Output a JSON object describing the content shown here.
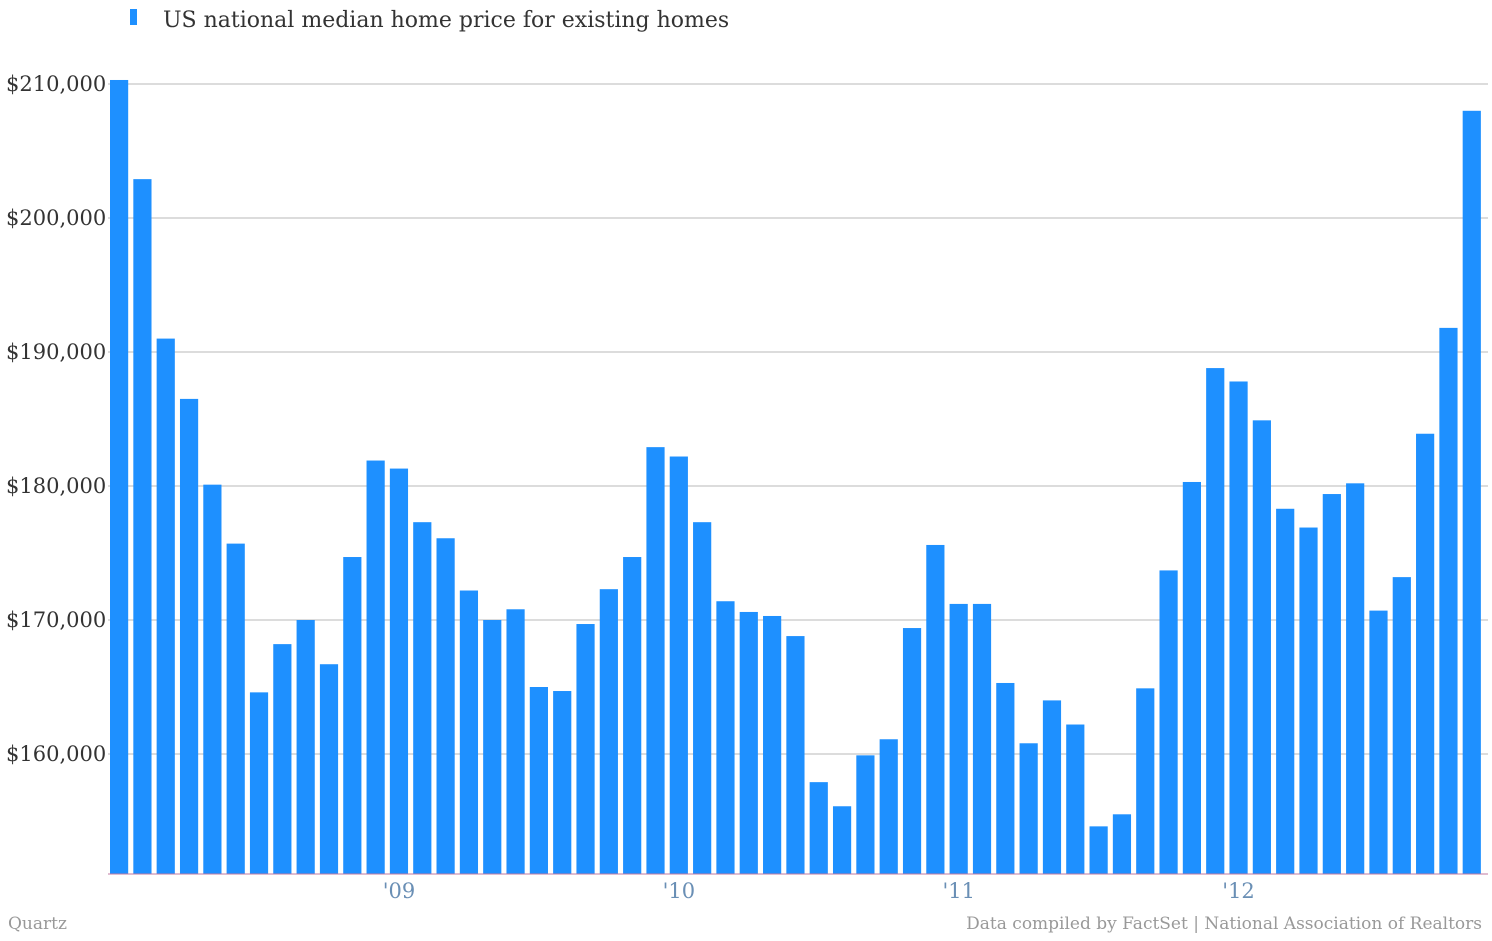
{
  "chart_data": {
    "type": "bar",
    "legend": "US national median home price for existing homes",
    "legend_placement": "top-left",
    "grid": true,
    "ylim": [
      151000,
      210000
    ],
    "yticks": [
      160000,
      170000,
      180000,
      190000,
      200000,
      210000
    ],
    "ytick_labels": [
      "$160,000",
      "$170,000",
      "$180,000",
      "$190,000",
      "$200,000",
      "$210,000"
    ],
    "xticks": [
      {
        "index": 12,
        "label": "'09"
      },
      {
        "index": 24,
        "label": "'10"
      },
      {
        "index": 36,
        "label": "'11"
      },
      {
        "index": 48,
        "label": "'12"
      }
    ],
    "values": [
      210300,
      202900,
      191000,
      186500,
      180100,
      175700,
      164600,
      168200,
      170000,
      166700,
      174700,
      181900,
      181300,
      177300,
      176100,
      172200,
      170000,
      170800,
      165000,
      164700,
      169700,
      172300,
      174700,
      182900,
      182200,
      177300,
      171400,
      170600,
      170300,
      168800,
      157900,
      156100,
      159900,
      161100,
      169400,
      175600,
      171200,
      171200,
      165300,
      160800,
      164000,
      162200,
      154600,
      155500,
      164900,
      173700,
      180300,
      188800,
      187800,
      184900,
      178300,
      176900,
      179400,
      180200,
      170700,
      173200,
      183900,
      191800,
      208000
    ]
  },
  "footer": {
    "left": "Quartz",
    "right": "Data compiled by FactSet | National Association of Realtors"
  }
}
